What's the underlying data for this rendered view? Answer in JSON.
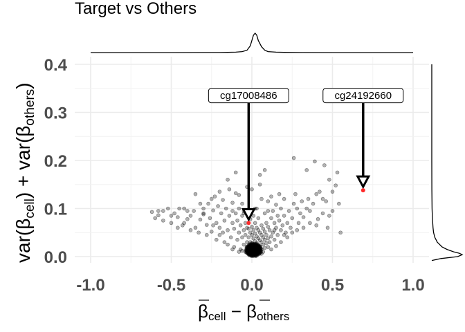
{
  "chart_data": {
    "type": "scatter",
    "title": "Target vs Others",
    "xlabel": {
      "main": "β",
      "sub1": "cell",
      "op": " − ",
      "main2": "β",
      "sub2": "others"
    },
    "ylabel": {
      "p1": "var(β",
      "sub1": "cell",
      "p2": ") + var(β",
      "sub2": "others",
      "p3": ")"
    },
    "xlim": [
      -1.0,
      1.0
    ],
    "ylim": [
      0,
      0.4
    ],
    "x_ticks": [
      -1.0,
      -0.5,
      0.0,
      0.5,
      1.0
    ],
    "x_tick_labels": [
      "-1.0",
      "-0.5",
      "0.0",
      "0.5",
      "1.0"
    ],
    "y_ticks": [
      0.0,
      0.1,
      0.2,
      0.3,
      0.4
    ],
    "y_tick_labels": [
      "0.0",
      "0.1",
      "0.2",
      "0.3",
      "0.4"
    ],
    "grid": true,
    "point_color": "#000000",
    "point_opacity": 0.3,
    "highlight_color": "#ff2a2a",
    "annotations": [
      {
        "label": "cg17008486",
        "x": -0.02,
        "y": 0.07,
        "label_y": 0.335
      },
      {
        "label": "cg24192660",
        "x": 0.69,
        "y": 0.138,
        "label_y": 0.335
      }
    ],
    "points": [
      [
        -0.62,
        0.093
      ],
      [
        -0.6,
        0.08
      ],
      [
        -0.58,
        0.086
      ],
      [
        -0.55,
        0.095
      ],
      [
        -0.52,
        0.1
      ],
      [
        -0.5,
        0.07
      ],
      [
        -0.48,
        0.09
      ],
      [
        -0.46,
        0.082
      ],
      [
        -0.45,
        0.1
      ],
      [
        -0.43,
        0.065
      ],
      [
        -0.42,
        0.1
      ],
      [
        -0.4,
        0.078
      ],
      [
        -0.38,
        0.085
      ],
      [
        -0.36,
        0.095
      ],
      [
        -0.35,
        0.06
      ],
      [
        -0.33,
        0.05
      ],
      [
        -0.32,
        0.077
      ],
      [
        -0.3,
        0.1
      ],
      [
        -0.3,
        0.088
      ],
      [
        -0.28,
        0.066
      ],
      [
        -0.27,
        0.11
      ],
      [
        -0.26,
        0.08
      ],
      [
        -0.25,
        0.052
      ],
      [
        -0.24,
        0.096
      ],
      [
        -0.23,
        0.125
      ],
      [
        -0.22,
        0.07
      ],
      [
        -0.21,
        0.105
      ],
      [
        -0.2,
        0.06
      ],
      [
        -0.2,
        0.045
      ],
      [
        -0.19,
        0.09
      ],
      [
        -0.18,
        0.118
      ],
      [
        -0.17,
        0.03
      ],
      [
        -0.17,
        0.075
      ],
      [
        -0.16,
        0.1
      ],
      [
        -0.15,
        0.055
      ],
      [
        -0.14,
        0.085
      ],
      [
        -0.14,
        0.14
      ],
      [
        -0.13,
        0.04
      ],
      [
        -0.12,
        0.07
      ],
      [
        -0.12,
        0.112
      ],
      [
        -0.11,
        0.02
      ],
      [
        -0.11,
        0.058
      ],
      [
        -0.1,
        0.09
      ],
      [
        -0.1,
        0.132
      ],
      [
        -0.09,
        0.035
      ],
      [
        -0.09,
        0.075
      ],
      [
        -0.08,
        0.05
      ],
      [
        -0.08,
        0.1
      ],
      [
        -0.08,
        0.128
      ],
      [
        -0.07,
        0.015
      ],
      [
        -0.07,
        0.065
      ],
      [
        -0.06,
        0.04
      ],
      [
        -0.06,
        0.085
      ],
      [
        -0.06,
        0.11
      ],
      [
        -0.05,
        0.025
      ],
      [
        -0.05,
        0.055
      ],
      [
        -0.05,
        0.095
      ],
      [
        -0.04,
        0.01
      ],
      [
        -0.04,
        0.045
      ],
      [
        -0.04,
        0.07
      ],
      [
        -0.03,
        0.03
      ],
      [
        -0.03,
        0.06
      ],
      [
        -0.03,
        0.088
      ],
      [
        -0.03,
        0.145
      ],
      [
        -0.02,
        0.005
      ],
      [
        -0.02,
        0.02
      ],
      [
        -0.02,
        0.04
      ],
      [
        -0.01,
        0.01
      ],
      [
        -0.01,
        0.03
      ],
      [
        -0.01,
        0.05
      ],
      [
        -0.01,
        0.078
      ],
      [
        0.0,
        0.008
      ],
      [
        0.0,
        0.018
      ],
      [
        0.0,
        0.028
      ],
      [
        0.0,
        0.045
      ],
      [
        0.0,
        0.062
      ],
      [
        0.01,
        0.005
      ],
      [
        0.01,
        0.015
      ],
      [
        0.01,
        0.025
      ],
      [
        0.01,
        0.038
      ],
      [
        0.01,
        0.055
      ],
      [
        0.01,
        0.085
      ],
      [
        0.02,
        0.01
      ],
      [
        0.02,
        0.02
      ],
      [
        0.02,
        0.032
      ],
      [
        0.02,
        0.048
      ],
      [
        0.02,
        0.07
      ],
      [
        0.03,
        0.006
      ],
      [
        0.03,
        0.016
      ],
      [
        0.03,
        0.028
      ],
      [
        0.03,
        0.042
      ],
      [
        0.03,
        0.06
      ],
      [
        0.03,
        0.1
      ],
      [
        0.04,
        0.012
      ],
      [
        0.04,
        0.024
      ],
      [
        0.04,
        0.038
      ],
      [
        0.04,
        0.055
      ],
      [
        0.04,
        0.08
      ],
      [
        0.05,
        0.008
      ],
      [
        0.05,
        0.02
      ],
      [
        0.05,
        0.034
      ],
      [
        0.05,
        0.05
      ],
      [
        0.05,
        0.17
      ],
      [
        0.06,
        0.015
      ],
      [
        0.06,
        0.03
      ],
      [
        0.06,
        0.045
      ],
      [
        0.06,
        0.065
      ],
      [
        0.06,
        0.12
      ],
      [
        0.07,
        0.01
      ],
      [
        0.07,
        0.025
      ],
      [
        0.07,
        0.04
      ],
      [
        0.07,
        0.058
      ],
      [
        0.08,
        0.018
      ],
      [
        0.08,
        0.035
      ],
      [
        0.08,
        0.052
      ],
      [
        0.08,
        0.09
      ],
      [
        0.09,
        0.028
      ],
      [
        0.09,
        0.045
      ],
      [
        0.09,
        0.07
      ],
      [
        0.1,
        0.02
      ],
      [
        0.1,
        0.038
      ],
      [
        0.1,
        0.062
      ],
      [
        0.1,
        0.115
      ],
      [
        0.11,
        0.03
      ],
      [
        0.11,
        0.055
      ],
      [
        0.12,
        0.042
      ],
      [
        0.12,
        0.08
      ],
      [
        0.12,
        0.125
      ],
      [
        0.13,
        0.05
      ],
      [
        0.13,
        0.095
      ],
      [
        0.14,
        0.035
      ],
      [
        0.14,
        0.07
      ],
      [
        0.15,
        0.06
      ],
      [
        0.15,
        0.108
      ],
      [
        0.16,
        0.045
      ],
      [
        0.16,
        0.085
      ],
      [
        0.17,
        0.075
      ],
      [
        0.17,
        0.13
      ],
      [
        0.18,
        0.055
      ],
      [
        0.18,
        0.1
      ],
      [
        0.19,
        0.065
      ],
      [
        0.2,
        0.085
      ],
      [
        0.2,
        0.12
      ],
      [
        0.21,
        0.05
      ],
      [
        0.22,
        0.07
      ],
      [
        0.23,
        0.095
      ],
      [
        0.24,
        0.06
      ],
      [
        0.25,
        0.08
      ],
      [
        0.26,
        0.205
      ],
      [
        0.27,
        0.13
      ],
      [
        0.28,
        0.1
      ],
      [
        0.29,
        0.07
      ],
      [
        0.3,
        0.09
      ],
      [
        0.31,
        0.115
      ],
      [
        0.32,
        0.082
      ],
      [
        0.34,
        0.18
      ],
      [
        0.35,
        0.12
      ],
      [
        0.36,
        0.095
      ],
      [
        0.38,
        0.11
      ],
      [
        0.39,
        0.198
      ],
      [
        0.4,
        0.13
      ],
      [
        0.41,
        0.078
      ],
      [
        0.42,
        0.135
      ],
      [
        0.44,
        0.09
      ],
      [
        0.45,
        0.19
      ],
      [
        0.46,
        0.115
      ],
      [
        0.47,
        0.06
      ],
      [
        0.48,
        0.16
      ],
      [
        0.5,
        0.135
      ],
      [
        0.5,
        0.095
      ],
      [
        0.52,
        0.148
      ],
      [
        0.53,
        0.175
      ],
      [
        0.54,
        0.11
      ],
      [
        0.55,
        0.05
      ],
      [
        -0.35,
        0.13
      ],
      [
        -0.25,
        0.12
      ],
      [
        -0.15,
        0.16
      ],
      [
        -0.1,
        0.175
      ],
      [
        -0.05,
        0.09
      ],
      [
        0.0,
        0.14
      ],
      [
        0.05,
        0.15
      ],
      [
        0.08,
        0.18
      ],
      [
        -0.2,
        0.135
      ],
      [
        -0.3,
        0.09
      ],
      [
        -0.42,
        0.07
      ],
      [
        -0.55,
        0.075
      ],
      [
        -0.46,
        0.06
      ],
      [
        -0.38,
        0.055
      ],
      [
        -0.28,
        0.045
      ],
      [
        -0.22,
        0.035
      ],
      [
        -0.15,
        0.025
      ],
      [
        -0.12,
        0.015
      ],
      [
        -0.08,
        0.01
      ],
      [
        0.12,
        0.015
      ],
      [
        0.15,
        0.022
      ],
      [
        0.18,
        0.03
      ],
      [
        0.22,
        0.04
      ],
      [
        0.25,
        0.05
      ],
      [
        0.28,
        0.055
      ],
      [
        0.32,
        0.06
      ],
      [
        0.36,
        0.07
      ],
      [
        0.4,
        0.065
      ],
      [
        -0.06,
        0.012
      ],
      [
        0.06,
        0.006
      ],
      [
        -0.02,
        0.058
      ],
      [
        0.02,
        0.1
      ],
      [
        -0.12,
        0.095
      ],
      [
        0.1,
        0.095
      ],
      [
        -0.18,
        0.05
      ],
      [
        0.14,
        0.055
      ],
      [
        -0.24,
        0.065
      ],
      [
        0.2,
        0.045
      ],
      [
        -0.32,
        0.11
      ],
      [
        0.26,
        0.11
      ],
      [
        -0.4,
        0.095
      ],
      [
        0.34,
        0.1
      ],
      [
        -0.5,
        0.085
      ],
      [
        0.44,
        0.12
      ],
      [
        -0.58,
        0.095
      ],
      [
        0.48,
        0.085
      ]
    ],
    "x_density": [
      [
        -1.0,
        0.0
      ],
      [
        -0.5,
        0.0
      ],
      [
        -0.3,
        0.002
      ],
      [
        -0.2,
        0.005
      ],
      [
        -0.15,
        0.01
      ],
      [
        -0.1,
        0.02
      ],
      [
        -0.06,
        0.05
      ],
      [
        -0.03,
        0.12
      ],
      [
        -0.01,
        0.35
      ],
      [
        0.0,
        0.62
      ],
      [
        0.01,
        0.9
      ],
      [
        0.02,
        1.0
      ],
      [
        0.03,
        0.9
      ],
      [
        0.04,
        0.62
      ],
      [
        0.06,
        0.3
      ],
      [
        0.08,
        0.12
      ],
      [
        0.1,
        0.05
      ],
      [
        0.15,
        0.02
      ],
      [
        0.2,
        0.01
      ],
      [
        0.3,
        0.004
      ],
      [
        0.5,
        0.001
      ],
      [
        0.7,
        0.001
      ],
      [
        1.0,
        0.0
      ]
    ],
    "y_density": [
      [
        0.4,
        0.0
      ],
      [
        0.2,
        0.0
      ],
      [
        0.14,
        0.003
      ],
      [
        0.1,
        0.01
      ],
      [
        0.08,
        0.02
      ],
      [
        0.06,
        0.04
      ],
      [
        0.05,
        0.06
      ],
      [
        0.04,
        0.1
      ],
      [
        0.03,
        0.18
      ],
      [
        0.02,
        0.34
      ],
      [
        0.015,
        0.5
      ],
      [
        0.01,
        0.72
      ],
      [
        0.007,
        0.9
      ],
      [
        0.004,
        1.0
      ],
      [
        0.0,
        0.85
      ],
      [
        -0.004,
        0.3
      ],
      [
        -0.008,
        0.0
      ]
    ]
  }
}
